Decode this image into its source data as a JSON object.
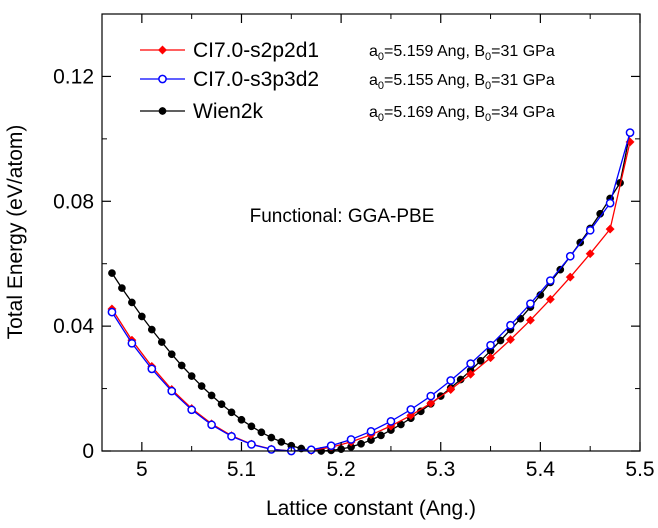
{
  "chart_data": {
    "type": "line",
    "xlabel": "Lattice constant (Ang.)",
    "ylabel": "Total Energy (eV/atom)",
    "xlim": [
      4.96,
      5.5
    ],
    "ylim": [
      0,
      0.14
    ],
    "x_ticks": [
      "5",
      "5.1",
      "5.2",
      "5.3",
      "5.4",
      "5.5"
    ],
    "y_ticks": [
      "0",
      "0.04",
      "0.08",
      "0.12"
    ],
    "annotation": "Functional: GGA-PBE",
    "legend_position": "top-left",
    "series": [
      {
        "name": "CI7.0-s2p2d1",
        "color": "#ff0000",
        "marker": "diamond",
        "fit": {
          "a0_label": "a",
          "a0_sub": "0",
          "a0_text": "=5.159 Ang, ",
          "b0_label": "B",
          "b0_sub": "0",
          "b0_text": "=31 GPa"
        },
        "x": [
          4.97,
          4.99,
          5.01,
          5.03,
          5.05,
          5.07,
          5.09,
          5.11,
          5.13,
          5.15,
          5.17,
          5.19,
          5.21,
          5.23,
          5.25,
          5.27,
          5.29,
          5.31,
          5.33,
          5.35,
          5.37,
          5.39,
          5.41,
          5.43,
          5.45,
          5.47,
          5.49
        ],
        "y": [
          0.0455,
          0.0355,
          0.0271,
          0.0197,
          0.0136,
          0.0087,
          0.0049,
          0.0022,
          0.0006,
          0.0,
          0.0002,
          0.0012,
          0.0029,
          0.0052,
          0.008,
          0.0114,
          0.0153,
          0.0197,
          0.0246,
          0.0299,
          0.0357,
          0.0419,
          0.0486,
          0.0557,
          0.0632,
          0.0711,
          0.099
        ]
      },
      {
        "name": "CI7.0-s3p3d2",
        "color": "#0000ff",
        "marker": "circle-open",
        "fit": {
          "a0_label": "a",
          "a0_sub": "0",
          "a0_text": "=5.155 Ang, ",
          "b0_label": "B",
          "b0_sub": "0",
          "b0_text": "=31 GPa"
        },
        "x": [
          4.97,
          4.99,
          5.01,
          5.03,
          5.05,
          5.07,
          5.09,
          5.11,
          5.13,
          5.15,
          5.17,
          5.19,
          5.21,
          5.23,
          5.25,
          5.27,
          5.29,
          5.31,
          5.33,
          5.35,
          5.37,
          5.39,
          5.41,
          5.43,
          5.45,
          5.47,
          5.49
        ],
        "y": [
          0.0445,
          0.0345,
          0.0263,
          0.0192,
          0.0132,
          0.0084,
          0.0047,
          0.0021,
          0.0005,
          0.0,
          0.0004,
          0.0017,
          0.0037,
          0.0063,
          0.0095,
          0.0133,
          0.0176,
          0.0226,
          0.028,
          0.0339,
          0.0403,
          0.0472,
          0.0546,
          0.0624,
          0.0707,
          0.0794,
          0.102
        ]
      },
      {
        "name": "Wien2k",
        "color": "#000000",
        "marker": "circle",
        "fit": {
          "a0_label": "a",
          "a0_sub": "0",
          "a0_text": "=5.169 Ang, ",
          "b0_label": "B",
          "b0_sub": "0",
          "b0_text": "=34 GPa"
        },
        "x": [
          4.97,
          4.98,
          4.99,
          5.0,
          5.01,
          5.02,
          5.03,
          5.04,
          5.05,
          5.06,
          5.07,
          5.08,
          5.09,
          5.1,
          5.11,
          5.12,
          5.13,
          5.14,
          5.15,
          5.16,
          5.17,
          5.18,
          5.19,
          5.2,
          5.21,
          5.22,
          5.23,
          5.24,
          5.25,
          5.26,
          5.27,
          5.28,
          5.29,
          5.3,
          5.31,
          5.32,
          5.33,
          5.34,
          5.35,
          5.36,
          5.37,
          5.38,
          5.39,
          5.4,
          5.41,
          5.42,
          5.43,
          5.44,
          5.45,
          5.46,
          5.47,
          5.48,
          5.49
        ],
        "y": [
          0.057,
          0.0522,
          0.0476,
          0.0431,
          0.0389,
          0.0349,
          0.031,
          0.0274,
          0.024,
          0.0208,
          0.0178,
          0.015,
          0.0124,
          0.01,
          0.0079,
          0.006,
          0.0043,
          0.0029,
          0.0017,
          0.0008,
          0.0002,
          0.0,
          0.0002,
          0.0006,
          0.0013,
          0.0023,
          0.0035,
          0.005,
          0.0067,
          0.0085,
          0.0105,
          0.0127,
          0.0151,
          0.0176,
          0.0202,
          0.0229,
          0.0258,
          0.0289,
          0.0321,
          0.0354,
          0.0389,
          0.0424,
          0.0461,
          0.05,
          0.054,
          0.0581,
          0.0624,
          0.0668,
          0.0713,
          0.076,
          0.0809,
          0.0859,
          0.102
        ]
      }
    ]
  }
}
